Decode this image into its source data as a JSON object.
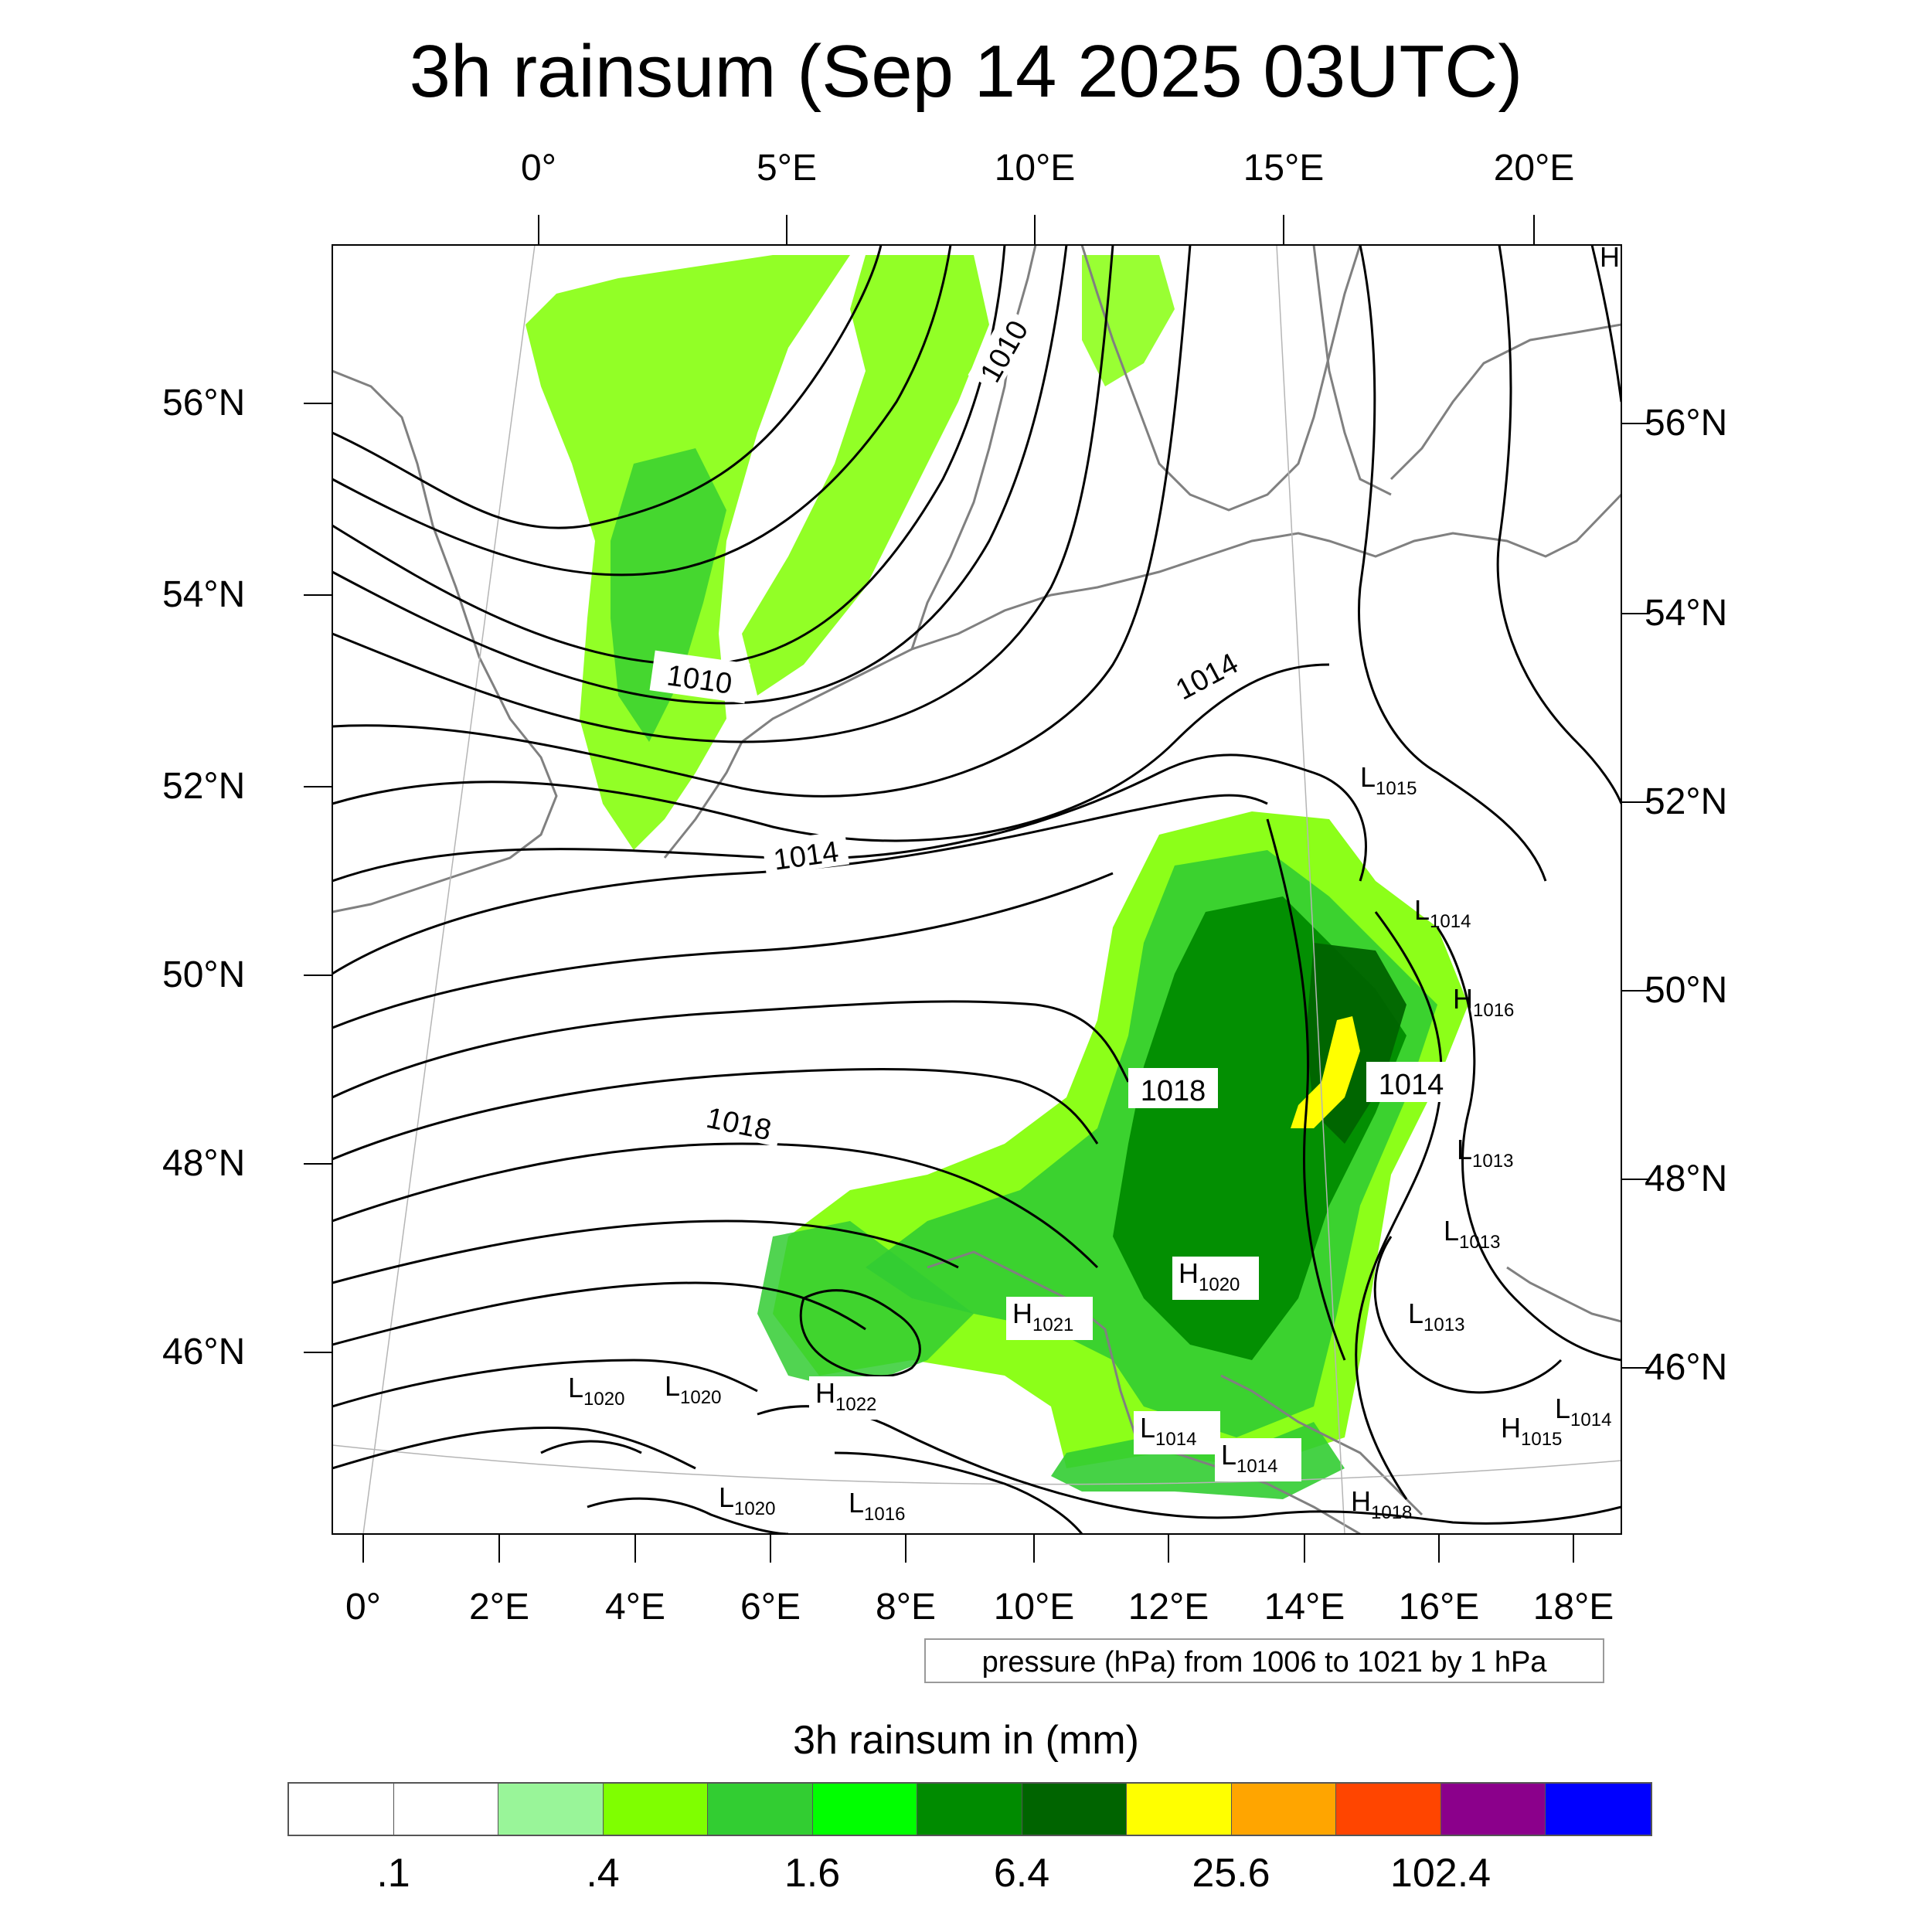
{
  "title": "3h rainsum (Sep 14 2025 03UTC)",
  "top_axis_labels": [
    "0°",
    "5°E",
    "10°E",
    "15°E",
    "20°E"
  ],
  "bottom_axis_labels": [
    "0°",
    "2°E",
    "4°E",
    "6°E",
    "8°E",
    "10°E",
    "12°E",
    "14°E",
    "16°E",
    "18°E"
  ],
  "left_axis_labels": [
    "56°N",
    "54°N",
    "52°N",
    "50°N",
    "48°N",
    "46°N"
  ],
  "right_axis_labels": [
    "56°N",
    "54°N",
    "52°N",
    "50°N",
    "48°N",
    "46°N"
  ],
  "isobar_labels": [
    "1010",
    "1010",
    "1014",
    "1014",
    "1018",
    "1018",
    "1014"
  ],
  "pressure_centers": [
    {
      "letter": "H",
      "value": ""
    },
    {
      "letter": "L",
      "value": "1015"
    },
    {
      "letter": "L",
      "value": "1014"
    },
    {
      "letter": "H",
      "value": "1016"
    },
    {
      "letter": "L",
      "value": "1013"
    },
    {
      "letter": "L",
      "value": "1013"
    },
    {
      "letter": "L",
      "value": "1013"
    },
    {
      "letter": "H",
      "value": "1020"
    },
    {
      "letter": "H",
      "value": "1021"
    },
    {
      "letter": "L",
      "value": "1020"
    },
    {
      "letter": "L",
      "value": "1020"
    },
    {
      "letter": "H",
      "value": "1022"
    },
    {
      "letter": "L",
      "value": "1014"
    },
    {
      "letter": "L",
      "value": "1014"
    },
    {
      "letter": "H",
      "value": "1015"
    },
    {
      "letter": "L",
      "value": "1014"
    },
    {
      "letter": "L",
      "value": "1020"
    },
    {
      "letter": "L",
      "value": "1016"
    },
    {
      "letter": "H",
      "value": "1018"
    }
  ],
  "info_box": "pressure (hPa) from 1006 to 1021 by 1 hPa",
  "colorbar": {
    "title": "3h rainsum in (mm)",
    "colors": [
      "#ffffff",
      "#ffffff",
      "#99f599",
      "#7fff00",
      "#32cd32",
      "#00ff00",
      "#008b00",
      "#006400",
      "#ffff00",
      "#ffa500",
      "#ff4500",
      "#8b008b",
      "#0000ff"
    ],
    "labels": [
      ".1",
      ".4",
      "1.6",
      "6.4",
      "25.6",
      "102.4"
    ]
  }
}
